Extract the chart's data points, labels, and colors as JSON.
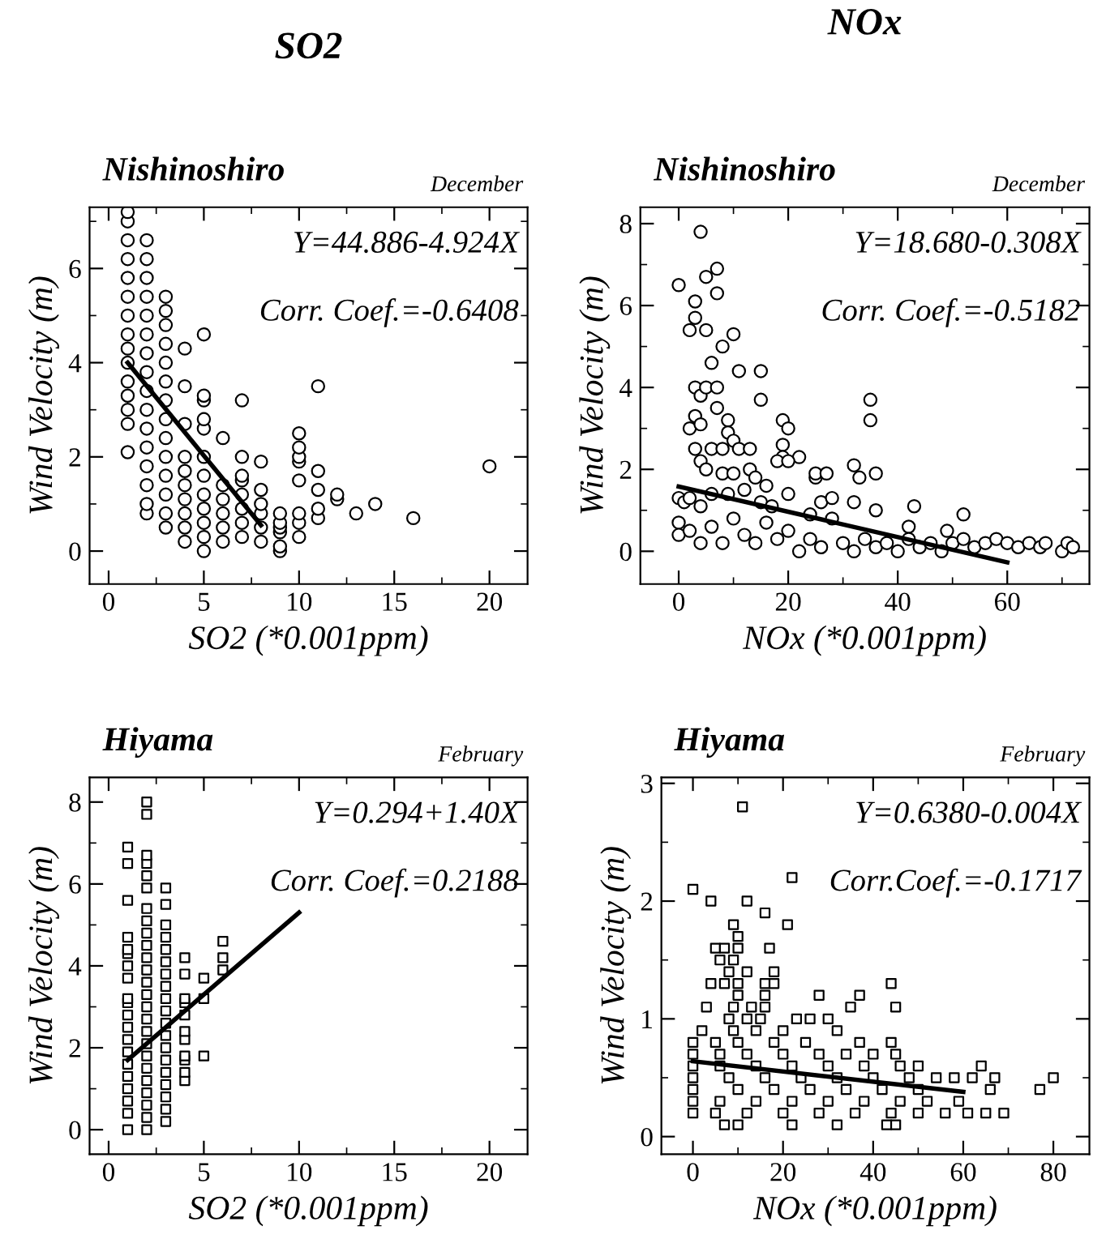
{
  "chart_data": [
    {
      "type": "scatter",
      "title": "Nishinoshiro",
      "subtitle": "December",
      "xlabel": "SO2 (*0.001ppm)",
      "ylabel": "Wind Velocity (m)",
      "annotations": [
        "SO2",
        "Y=44.886-4.924X",
        "Corr. Coef.=-0.6408"
      ],
      "marker": "circle",
      "xlim": [
        -1,
        22
      ],
      "ylim": [
        -0.7,
        7.3
      ],
      "xticks": [
        0,
        {
          "value": 2.5,
          "label": null
        },
        5,
        {
          "value": 7.5,
          "label": null
        },
        10,
        {
          "value": 12.5,
          "label": null
        },
        15,
        {
          "value": 17.5,
          "label": null
        },
        20
      ],
      "yticks": [
        0,
        {
          "value": 1,
          "label": null
        },
        2,
        {
          "value": 3,
          "label": null
        },
        4,
        {
          "value": 5,
          "label": null
        },
        6,
        {
          "value": 7,
          "label": null
        }
      ],
      "series": [
        {
          "type": "scatter",
          "color": "#000000",
          "x": [
            1,
            1,
            1,
            1,
            1,
            1,
            1,
            1,
            1,
            1,
            1,
            1,
            1,
            1,
            1,
            2,
            2,
            2,
            2,
            2,
            2,
            2,
            2,
            2,
            2,
            2,
            2,
            2,
            2,
            2,
            2,
            3,
            3,
            3,
            3,
            3,
            3,
            3,
            3,
            3,
            3,
            3,
            3,
            3,
            3,
            4,
            4,
            4,
            4,
            4,
            4,
            4,
            4,
            4,
            4,
            5,
            5,
            5,
            5,
            5,
            5,
            5,
            5,
            5,
            5,
            5,
            5,
            6,
            6,
            6,
            6,
            6,
            6,
            7,
            7,
            7,
            7,
            7,
            7,
            7,
            7,
            8,
            8,
            8,
            8,
            8,
            8,
            9,
            9,
            9,
            9,
            9,
            9,
            10,
            10,
            10,
            10,
            10,
            10,
            10,
            10,
            11,
            11,
            11,
            11,
            11,
            12,
            12,
            13,
            14,
            16,
            20
          ],
          "values": [
            2.1,
            2.7,
            3.0,
            3.3,
            3.6,
            4.0,
            4.3,
            4.6,
            5.0,
            5.4,
            5.8,
            6.2,
            6.6,
            7.0,
            7.2,
            0.8,
            1.0,
            1.4,
            1.8,
            2.2,
            2.6,
            3.0,
            3.4,
            3.8,
            4.2,
            4.6,
            5.0,
            5.4,
            5.8,
            6.2,
            6.6,
            0.5,
            0.8,
            1.2,
            1.6,
            2.0,
            2.4,
            2.8,
            3.2,
            3.6,
            4.0,
            4.4,
            4.8,
            5.1,
            5.4,
            0.2,
            0.5,
            0.8,
            1.1,
            1.4,
            1.7,
            2.0,
            2.7,
            3.5,
            4.3,
            0.0,
            0.3,
            0.6,
            0.9,
            1.2,
            1.6,
            2.0,
            2.6,
            2.8,
            3.2,
            3.3,
            4.6,
            0.2,
            0.5,
            0.8,
            1.1,
            1.4,
            2.4,
            0.3,
            0.6,
            0.9,
            1.2,
            1.5,
            1.6,
            2.0,
            3.2,
            0.2,
            0.5,
            0.8,
            1.0,
            1.3,
            1.9,
            0.0,
            0.1,
            0.4,
            0.5,
            0.6,
            0.8,
            0.3,
            0.6,
            0.8,
            1.5,
            1.9,
            2.0,
            2.2,
            2.5,
            0.7,
            0.9,
            1.3,
            1.7,
            3.5,
            1.1,
            1.2,
            0.8,
            1.0,
            0.7,
            1.8
          ]
        },
        {
          "type": "line",
          "color": "#000000",
          "marker": "none",
          "x": [
            1,
            8
          ],
          "values": [
            4.0,
            0.55
          ]
        }
      ]
    },
    {
      "type": "scatter",
      "title": "Nishinoshiro",
      "subtitle": "December",
      "xlabel": "NOx (*0.001ppm)",
      "ylabel": "Wind Velocity (m)",
      "annotations": [
        "NOx",
        "Y=18.680-0.308X",
        "Corr. Coef.=-0.5182"
      ],
      "marker": "circle",
      "xlim": [
        -7,
        75
      ],
      "ylim": [
        -0.8,
        8.4
      ],
      "xticks": [
        0,
        {
          "value": 10,
          "label": null
        },
        20,
        {
          "value": 30,
          "label": null
        },
        40,
        {
          "value": 50,
          "label": null
        },
        60,
        {
          "value": 70,
          "label": null
        }
      ],
      "yticks": [
        0,
        {
          "value": 1,
          "label": null
        },
        2,
        {
          "value": 3,
          "label": null
        },
        4,
        {
          "value": 5,
          "label": null
        },
        6,
        {
          "value": 7,
          "label": null
        },
        8
      ],
      "series": [
        {
          "type": "scatter",
          "color": "#000000",
          "x": [
            0,
            2,
            3,
            3,
            4,
            5,
            5,
            6,
            7,
            7,
            8,
            10,
            11,
            15,
            15,
            3,
            4,
            5,
            7,
            7,
            9,
            19,
            20,
            35,
            35,
            2,
            3,
            4,
            3,
            4,
            6,
            8,
            9,
            10,
            11,
            13,
            19,
            19,
            22,
            5,
            8,
            10,
            13,
            14,
            16,
            18,
            20,
            25,
            25,
            27,
            32,
            33,
            36,
            0,
            1,
            2,
            4,
            6,
            9,
            12,
            15,
            17,
            20,
            24,
            26,
            28,
            32,
            36,
            43,
            52,
            0,
            0,
            2,
            4,
            6,
            8,
            10,
            12,
            14,
            16,
            18,
            20,
            22,
            24,
            26,
            28,
            30,
            32,
            34,
            36,
            38,
            40,
            42,
            42,
            44,
            46,
            48,
            49,
            50,
            52,
            54,
            56,
            58,
            60,
            62,
            64,
            66,
            67,
            70,
            71,
            72
          ],
          "values": [
            6.5,
            5.4,
            6.1,
            5.7,
            7.8,
            6.7,
            5.4,
            4.6,
            6.9,
            6.3,
            5.0,
            5.3,
            4.4,
            4.4,
            3.7,
            4.0,
            3.8,
            4.0,
            4.0,
            3.5,
            3.2,
            3.2,
            3.0,
            3.7,
            3.2,
            3.0,
            3.3,
            3.1,
            2.5,
            2.2,
            2.5,
            2.5,
            2.9,
            2.7,
            2.5,
            2.5,
            2.6,
            2.3,
            2.3,
            2.0,
            1.9,
            1.9,
            2.0,
            1.8,
            1.6,
            2.2,
            2.2,
            1.8,
            1.9,
            1.9,
            2.1,
            1.8,
            1.9,
            1.3,
            1.2,
            1.3,
            1.1,
            1.4,
            1.4,
            1.5,
            1.2,
            1.1,
            1.4,
            0.9,
            1.2,
            1.3,
            1.2,
            1.0,
            1.1,
            0.9,
            0.7,
            0.4,
            0.5,
            0.2,
            0.6,
            0.2,
            0.8,
            0.4,
            0.2,
            0.7,
            0.3,
            0.5,
            0.0,
            0.3,
            0.1,
            0.8,
            0.2,
            0.0,
            0.3,
            0.1,
            0.2,
            0.0,
            0.6,
            0.3,
            0.1,
            0.2,
            0.0,
            0.5,
            0.2,
            0.3,
            0.1,
            0.2,
            0.3,
            0.2,
            0.1,
            0.2,
            0.1,
            0.2,
            0.0,
            0.2,
            0.1
          ]
        },
        {
          "type": "line",
          "color": "#000000",
          "marker": "none",
          "x": [
            0,
            60
          ],
          "values": [
            1.58,
            -0.27
          ]
        }
      ]
    },
    {
      "type": "scatter",
      "title": "Hiyama",
      "subtitle": "February",
      "xlabel": "SO2 (*0.001ppm)",
      "ylabel": "Wind Velocity (m)",
      "annotations": [
        "Y=0.294+1.40X",
        "Corr. Coef.=0.2188"
      ],
      "marker": "square",
      "xlim": [
        -1,
        22
      ],
      "ylim": [
        -0.6,
        8.6
      ],
      "xticks": [
        0,
        {
          "value": 2.5,
          "label": null
        },
        5,
        {
          "value": 7.5,
          "label": null
        },
        10,
        {
          "value": 12.5,
          "label": null
        },
        15,
        {
          "value": 17.5,
          "label": null
        },
        20
      ],
      "yticks": [
        0,
        {
          "value": 1,
          "label": null
        },
        2,
        {
          "value": 3,
          "label": null
        },
        4,
        {
          "value": 5,
          "label": null
        },
        6,
        {
          "value": 7,
          "label": null
        },
        8
      ],
      "series": [
        {
          "type": "scatter",
          "color": "#000000",
          "x": [
            1,
            1,
            1,
            1,
            1,
            1,
            1,
            1,
            1,
            1,
            1,
            1,
            1,
            1,
            1,
            1,
            1,
            1,
            1,
            1,
            2,
            2,
            2,
            2,
            2,
            2,
            2,
            2,
            2,
            2,
            2,
            2,
            2,
            2,
            2,
            2,
            2,
            2,
            2,
            2,
            2,
            2,
            2,
            2,
            2,
            3,
            3,
            3,
            3,
            3,
            3,
            3,
            3,
            3,
            3,
            3,
            3,
            3,
            3,
            3,
            3,
            3,
            3,
            3,
            4,
            4,
            4,
            4,
            4,
            4,
            4,
            4,
            4,
            4,
            4,
            5,
            5,
            5,
            6,
            6,
            6
          ],
          "values": [
            0,
            0.4,
            0.7,
            1.0,
            1.3,
            1.6,
            1.9,
            2.2,
            2.5,
            2.8,
            3.1,
            3.2,
            3.7,
            4.0,
            4.3,
            4.4,
            4.7,
            5.6,
            6.5,
            6.9,
            0,
            0.3,
            0.6,
            0.9,
            1.2,
            1.5,
            1.8,
            2.1,
            2.4,
            2.7,
            3.0,
            3.3,
            3.6,
            3.9,
            4.2,
            4.5,
            4.8,
            5.1,
            5.4,
            5.9,
            6.2,
            6.5,
            6.7,
            7.7,
            8.0,
            0.2,
            0.5,
            0.8,
            1.1,
            1.4,
            1.7,
            2.0,
            2.3,
            2.6,
            2.9,
            3.2,
            3.5,
            3.8,
            4.1,
            4.4,
            4.7,
            5.0,
            5.5,
            5.9,
            1.2,
            1.4,
            1.7,
            1.8,
            2.2,
            2.4,
            2.8,
            3.1,
            3.2,
            3.8,
            4.2,
            1.8,
            3.2,
            3.7,
            3.9,
            4.2,
            4.6
          ]
        },
        {
          "type": "line",
          "color": "#000000",
          "marker": "none",
          "x": [
            1,
            10
          ],
          "values": [
            1.7,
            5.3
          ]
        }
      ]
    },
    {
      "type": "scatter",
      "title": "Hiyama",
      "subtitle": "February",
      "xlabel": "NOx (*0.001ppm)",
      "ylabel": "Wind Velocity (m)",
      "annotations": [
        "Y=0.6380-0.004X",
        "Corr.Coef.=-0.1717"
      ],
      "marker": "square",
      "xlim": [
        -7,
        88
      ],
      "ylim": [
        -0.15,
        3.05
      ],
      "xticks": [
        0,
        {
          "value": 10,
          "label": null
        },
        20,
        {
          "value": 30,
          "label": null
        },
        40,
        {
          "value": 50,
          "label": null
        },
        60,
        {
          "value": 70,
          "label": null
        },
        80
      ],
      "yticks": [
        0,
        {
          "value": 0.5,
          "label": null
        },
        1,
        {
          "value": 1.5,
          "label": null
        },
        2,
        {
          "value": 2.5,
          "label": null
        },
        3
      ],
      "series": [
        {
          "type": "scatter",
          "color": "#000000",
          "x": [
            0,
            4,
            12,
            16,
            11,
            22,
            9,
            21,
            10,
            5,
            7,
            10,
            17,
            6,
            9,
            8,
            12,
            18,
            4,
            7,
            10,
            16,
            18,
            10,
            16,
            28,
            37,
            44,
            3,
            9,
            13,
            16,
            35,
            45,
            8,
            12,
            15,
            23,
            26,
            30,
            2,
            9,
            14,
            20,
            32,
            0,
            5,
            10,
            18,
            25,
            37,
            44,
            0,
            6,
            12,
            20,
            28,
            34,
            40,
            45,
            0,
            6,
            14,
            22,
            30,
            38,
            46,
            50,
            64,
            0,
            8,
            16,
            24,
            32,
            40,
            48,
            54,
            58,
            62,
            67,
            80,
            0,
            10,
            18,
            26,
            34,
            42,
            50,
            66,
            77,
            0,
            6,
            14,
            22,
            30,
            38,
            46,
            52,
            59,
            0,
            5,
            12,
            20,
            28,
            36,
            44,
            50,
            56,
            61,
            65,
            69,
            7,
            10,
            22,
            32,
            43,
            45
          ],
          "values": [
            2.1,
            2.0,
            2.0,
            1.9,
            2.8,
            2.2,
            1.8,
            1.8,
            1.7,
            1.6,
            1.6,
            1.6,
            1.6,
            1.5,
            1.5,
            1.4,
            1.4,
            1.4,
            1.3,
            1.3,
            1.3,
            1.3,
            1.3,
            1.2,
            1.2,
            1.2,
            1.2,
            1.3,
            1.1,
            1.1,
            1.1,
            1.1,
            1.1,
            1.1,
            1.0,
            1.0,
            1.0,
            1.0,
            1.0,
            1.0,
            0.9,
            0.9,
            0.9,
            0.9,
            0.9,
            0.8,
            0.8,
            0.8,
            0.8,
            0.8,
            0.8,
            0.8,
            0.7,
            0.7,
            0.7,
            0.7,
            0.7,
            0.7,
            0.7,
            0.7,
            0.6,
            0.6,
            0.6,
            0.6,
            0.6,
            0.6,
            0.6,
            0.6,
            0.6,
            0.5,
            0.5,
            0.5,
            0.5,
            0.5,
            0.5,
            0.5,
            0.5,
            0.5,
            0.5,
            0.5,
            0.5,
            0.4,
            0.4,
            0.4,
            0.4,
            0.4,
            0.4,
            0.4,
            0.4,
            0.4,
            0.3,
            0.3,
            0.3,
            0.3,
            0.3,
            0.3,
            0.3,
            0.3,
            0.3,
            0.2,
            0.2,
            0.2,
            0.2,
            0.2,
            0.2,
            0.2,
            0.2,
            0.2,
            0.2,
            0.2,
            0.2,
            0.1,
            0.1,
            0.1,
            0.1,
            0.1,
            0.1
          ]
        },
        {
          "type": "line",
          "color": "#000000",
          "marker": "none",
          "x": [
            0,
            60
          ],
          "values": [
            0.64,
            0.38
          ]
        }
      ]
    }
  ]
}
